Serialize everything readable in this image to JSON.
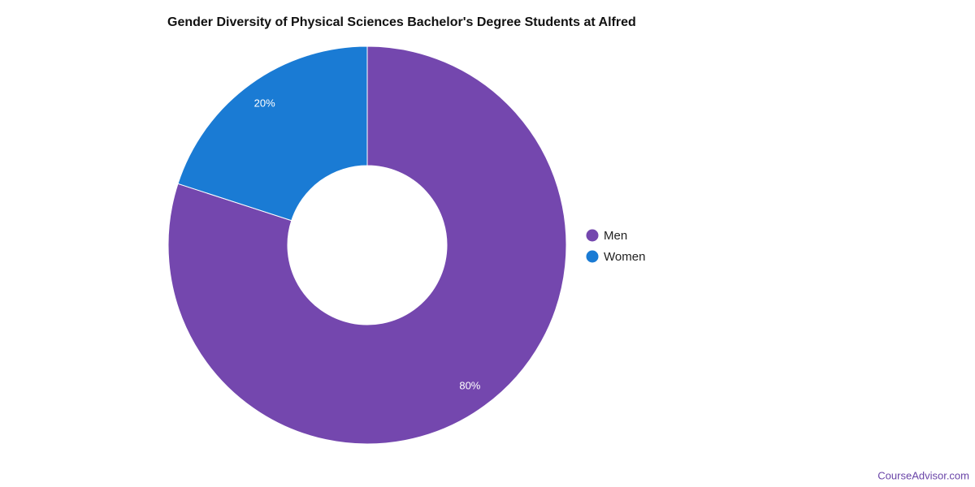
{
  "chart_data": {
    "type": "donut",
    "title": "Gender Diversity of Physical Sciences Bachelor's Degree Students at Alfred",
    "categories": [
      "Men",
      "Women"
    ],
    "values": [
      80,
      20
    ],
    "value_labels": [
      "80%",
      "20%"
    ],
    "colors": [
      "#7447ae",
      "#1a7bd4"
    ],
    "legend": "right"
  },
  "footer": {
    "text": "CourseAdvisor.com"
  }
}
